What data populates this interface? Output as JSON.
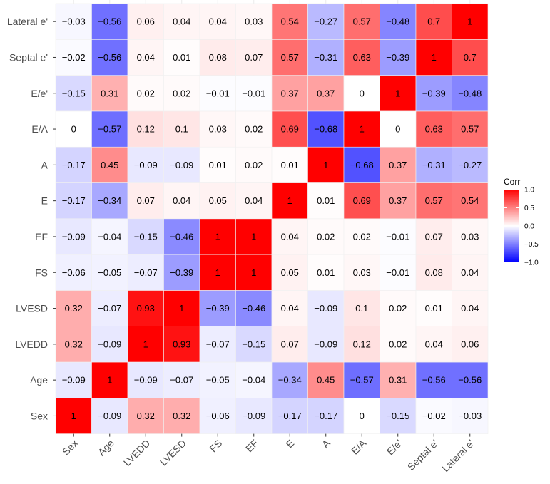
{
  "chart_data": {
    "type": "heatmap",
    "title": "",
    "xlabel": "",
    "ylabel": "",
    "variables": [
      "Sex",
      "Age",
      "LVEDD",
      "LVESD",
      "FS",
      "EF",
      "E",
      "A",
      "E/A",
      "E/e'",
      "Septal e'",
      "Lateral e'"
    ],
    "matrix": [
      [
        1,
        -0.09,
        0.32,
        0.32,
        -0.06,
        -0.09,
        -0.17,
        -0.17,
        0,
        -0.15,
        -0.02,
        -0.03
      ],
      [
        -0.09,
        1,
        -0.09,
        -0.07,
        -0.05,
        -0.04,
        -0.34,
        0.45,
        -0.57,
        0.31,
        -0.56,
        -0.56
      ],
      [
        0.32,
        -0.09,
        1,
        0.93,
        -0.07,
        -0.15,
        0.07,
        -0.09,
        0.12,
        0.02,
        0.04,
        0.06
      ],
      [
        0.32,
        -0.07,
        0.93,
        1,
        -0.39,
        -0.46,
        0.04,
        -0.09,
        0.1,
        0.02,
        0.01,
        0.04
      ],
      [
        -0.06,
        -0.05,
        -0.07,
        -0.39,
        1,
        1,
        0.05,
        0.01,
        0.03,
        -0.01,
        0.08,
        0.04
      ],
      [
        -0.09,
        -0.04,
        -0.15,
        -0.46,
        1,
        1,
        0.04,
        0.02,
        0.02,
        -0.01,
        0.07,
        0.03
      ],
      [
        -0.17,
        -0.34,
        0.07,
        0.04,
        0.05,
        0.04,
        1,
        0.01,
        0.69,
        0.37,
        0.57,
        0.54
      ],
      [
        -0.17,
        0.45,
        -0.09,
        -0.09,
        0.01,
        0.02,
        0.01,
        1,
        -0.68,
        0.37,
        -0.31,
        -0.27
      ],
      [
        0,
        -0.57,
        0.12,
        0.1,
        0.03,
        0.02,
        0.69,
        -0.68,
        1,
        0,
        0.63,
        0.57
      ],
      [
        -0.15,
        0.31,
        0.02,
        0.02,
        -0.01,
        -0.01,
        0.37,
        0.37,
        0,
        1,
        -0.39,
        -0.48
      ],
      [
        -0.02,
        -0.56,
        0.04,
        0.01,
        0.08,
        0.07,
        0.57,
        -0.31,
        0.63,
        -0.39,
        1,
        0.7
      ],
      [
        -0.03,
        -0.56,
        0.06,
        0.04,
        0.04,
        0.03,
        0.54,
        -0.27,
        0.57,
        -0.48,
        0.7,
        1
      ]
    ],
    "legend": {
      "title": "Corr",
      "ticks": [
        "1.0",
        "0.5",
        "0.0",
        "−0.5",
        "−1.0"
      ],
      "tick_values": [
        1,
        0.5,
        0,
        -0.5,
        -1
      ],
      "range": [
        -1,
        1
      ],
      "position": "right"
    },
    "colors": {
      "low": "#0000ff",
      "mid": "#ffffff",
      "high": "#ff0000"
    }
  }
}
